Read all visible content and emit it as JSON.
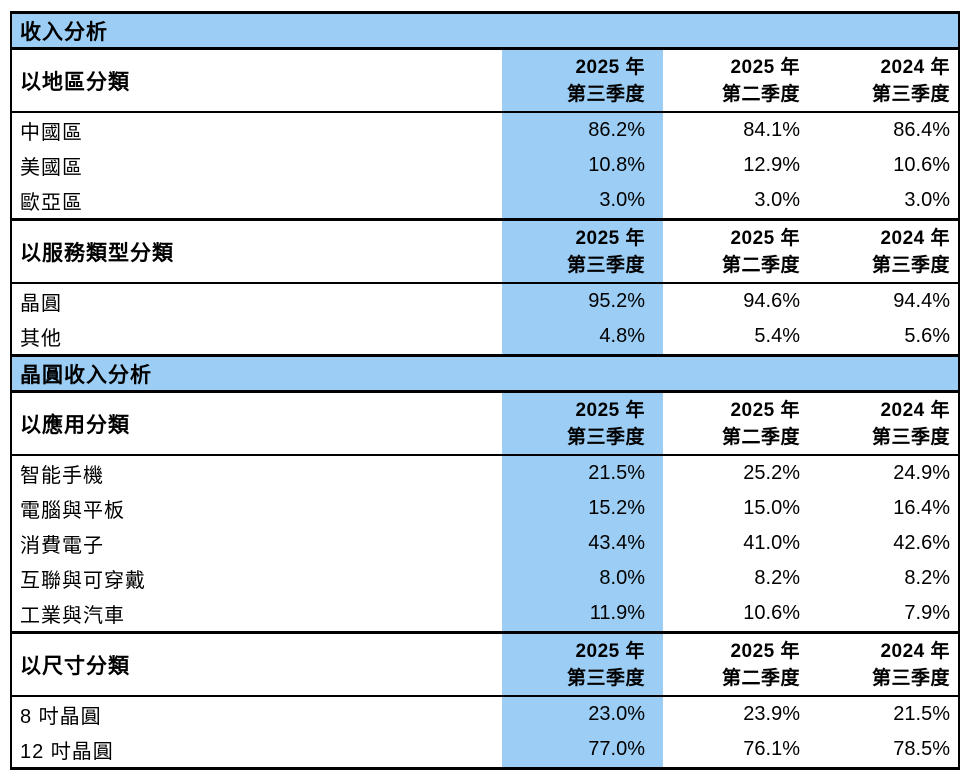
{
  "colors": {
    "highlight_blue": "#9CCEF5",
    "border": "#000000",
    "text": "#000000"
  },
  "bands": {
    "revenue": "收入分析",
    "wafer_revenue": "晶圓收入分析"
  },
  "quarters": {
    "q3_2025": {
      "year": "2025 年",
      "quarter": "第三季度"
    },
    "q2_2025": {
      "year": "2025 年",
      "quarter": "第二季度"
    },
    "q3_2024": {
      "year": "2024 年",
      "quarter": "第三季度"
    }
  },
  "groups": {
    "by_region": {
      "label": "以地區分類",
      "rows": [
        {
          "label": "中國區",
          "values": [
            "86.2%",
            "84.1%",
            "86.4%"
          ]
        },
        {
          "label": "美國區",
          "values": [
            "10.8%",
            "12.9%",
            "10.6%"
          ]
        },
        {
          "label": "歐亞區",
          "values": [
            "3.0%",
            "3.0%",
            "3.0%"
          ]
        }
      ]
    },
    "by_service": {
      "label": "以服務類型分類",
      "rows": [
        {
          "label": "晶圓",
          "values": [
            "95.2%",
            "94.6%",
            "94.4%"
          ]
        },
        {
          "label": "其他",
          "values": [
            "4.8%",
            "5.4%",
            "5.6%"
          ]
        }
      ]
    },
    "by_application": {
      "label": "以應用分類",
      "rows": [
        {
          "label": "智能手機",
          "values": [
            "21.5%",
            "25.2%",
            "24.9%"
          ]
        },
        {
          "label": "電腦與平板",
          "values": [
            "15.2%",
            "15.0%",
            "16.4%"
          ]
        },
        {
          "label": "消費電子",
          "values": [
            "43.4%",
            "41.0%",
            "42.6%"
          ]
        },
        {
          "label": "互聯與可穿戴",
          "values": [
            "8.0%",
            "8.2%",
            "8.2%"
          ]
        },
        {
          "label": "工業與汽車",
          "values": [
            "11.9%",
            "10.6%",
            "7.9%"
          ]
        }
      ]
    },
    "by_size": {
      "label": "以尺寸分類",
      "rows": [
        {
          "label": "8 吋晶圓",
          "values": [
            "23.0%",
            "23.9%",
            "21.5%"
          ]
        },
        {
          "label": "12 吋晶圓",
          "values": [
            "77.0%",
            "76.1%",
            "78.5%"
          ]
        }
      ]
    }
  }
}
